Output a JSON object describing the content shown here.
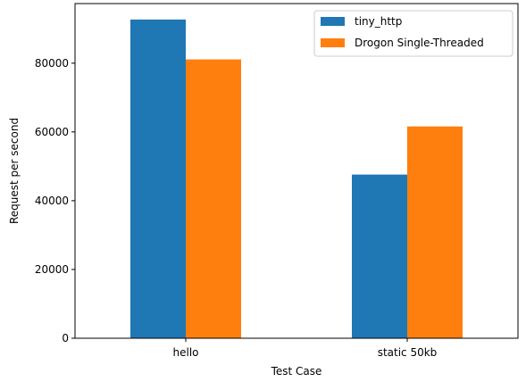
{
  "chart_data": {
    "type": "bar",
    "title": "",
    "xlabel": "Test Case",
    "ylabel": "Request per second",
    "categories": [
      "hello",
      "static 50kb"
    ],
    "series": [
      {
        "name": "tiny_http",
        "values": [
          92700,
          47600
        ],
        "color": "#1f77b4"
      },
      {
        "name": "Drogon Single-Threaded",
        "values": [
          81100,
          61600
        ],
        "color": "#ff7f0e"
      }
    ],
    "ylim": [
      0,
      97335
    ],
    "yticks": [
      0,
      20000,
      40000,
      60000,
      80000
    ],
    "grid": false,
    "legend_position": "top-right"
  }
}
